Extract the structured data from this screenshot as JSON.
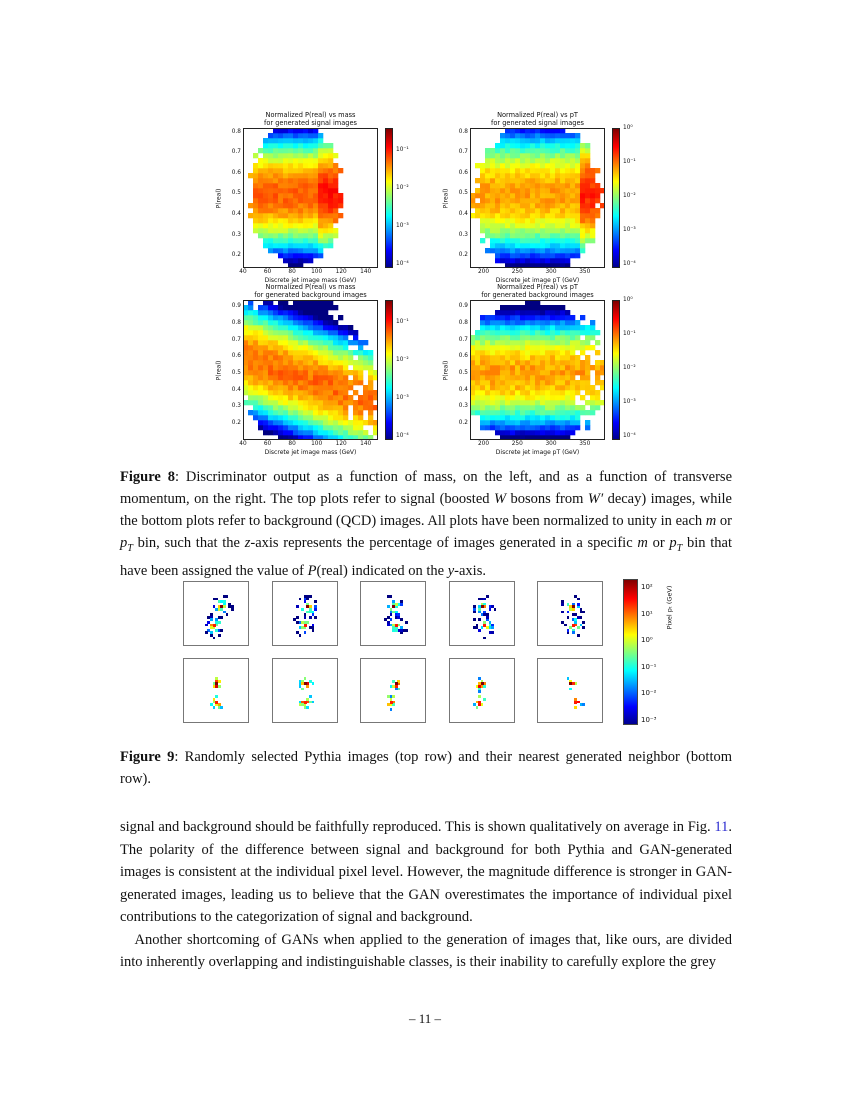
{
  "figure8": {
    "plots": [
      {
        "title": "Normalized P(real) vs mass\nfor generated signal images",
        "xlabel": "Discrete jet image mass (GeV)",
        "ylabel": "P(real)",
        "xticks": [
          "40",
          "60",
          "80",
          "100",
          "120",
          "140"
        ],
        "xlim": [
          40,
          150
        ],
        "yticks": [
          "0.2",
          "0.3",
          "0.4",
          "0.5",
          "0.6",
          "0.7",
          "0.8"
        ],
        "ylim": [
          0.14,
          0.82
        ],
        "cbar_ticks": [
          "10⁻¹",
          "10⁻²",
          "10⁻³",
          "10⁻⁴"
        ]
      },
      {
        "title": "Normalized P(real) vs pT\nfor generated signal images",
        "xlabel": "Discrete jet image pT (GeV)",
        "ylabel": "P(real)",
        "xticks": [
          "200",
          "250",
          "300",
          "350"
        ],
        "xlim": [
          180,
          380
        ],
        "yticks": [
          "0.2",
          "0.3",
          "0.4",
          "0.5",
          "0.6",
          "0.7",
          "0.8"
        ],
        "ylim": [
          0.14,
          0.82
        ],
        "cbar_ticks": [
          "10⁰",
          "10⁻¹",
          "10⁻²",
          "10⁻³",
          "10⁻⁴"
        ]
      },
      {
        "title": "Normalized P(real) vs mass\nfor generated background images",
        "xlabel": "Discrete jet image mass (GeV)",
        "ylabel": "P(real)",
        "xticks": [
          "40",
          "60",
          "80",
          "100",
          "120",
          "140"
        ],
        "xlim": [
          40,
          150
        ],
        "yticks": [
          "0.2",
          "0.3",
          "0.4",
          "0.5",
          "0.6",
          "0.7",
          "0.8",
          "0.9"
        ],
        "ylim": [
          0.1,
          0.94
        ],
        "cbar_ticks": [
          "10⁻¹",
          "10⁻²",
          "10⁻³",
          "10⁻⁴"
        ]
      },
      {
        "title": "Normalized P(real) vs pT\nfor generated background images",
        "xlabel": "Discrete jet image pT (GeV)",
        "ylabel": "P(real)",
        "xticks": [
          "200",
          "250",
          "300",
          "350"
        ],
        "xlim": [
          180,
          380
        ],
        "yticks": [
          "0.2",
          "0.3",
          "0.4",
          "0.5",
          "0.6",
          "0.7",
          "0.8",
          "0.9"
        ],
        "ylim": [
          0.1,
          0.94
        ],
        "cbar_ticks": [
          "10⁰",
          "10⁻¹",
          "10⁻²",
          "10⁻³",
          "10⁻⁴"
        ]
      }
    ],
    "caption_label": "Figure 8",
    "caption": [
      {
        "t": ": Discriminator output as a function of mass, on the left, and as a function of transverse momentum, on the right. The top plots refer to signal (boosted "
      },
      {
        "t": "W",
        "i": true
      },
      {
        "t": " bosons from "
      },
      {
        "t": "W′",
        "i": true
      },
      {
        "t": " decay) images, while the bottom plots refer to background (QCD) images. All plots have been normalized to unity in each "
      },
      {
        "t": "m",
        "i": true
      },
      {
        "t": " or "
      },
      {
        "t": "p",
        "i": true
      },
      {
        "t": "T",
        "i": true,
        "sub": true
      },
      {
        "t": " bin, such that the "
      },
      {
        "t": "z",
        "i": true
      },
      {
        "t": "-axis represents the percentage of images generated in a specific "
      },
      {
        "t": "m",
        "i": true
      },
      {
        "t": " or "
      },
      {
        "t": "p",
        "i": true
      },
      {
        "t": "T",
        "i": true,
        "sub": true
      },
      {
        "t": " bin that have been assigned the value of "
      },
      {
        "t": "P",
        "i": true
      },
      {
        "t": "(real) indicated on the "
      },
      {
        "t": "y",
        "i": true
      },
      {
        "t": "-axis."
      }
    ]
  },
  "figure9": {
    "cbar_label": "Pixel pₜ (GeV)",
    "cbar_ticks": [
      "10²",
      "10¹",
      "10⁰",
      "10⁻¹",
      "10⁻²",
      "10⁻³"
    ],
    "caption_label": "Figure 9",
    "caption": [
      {
        "t": ": Randomly selected Pythia images (top row) and their nearest generated neighbor (bottom row)."
      }
    ]
  },
  "body": {
    "para1": [
      {
        "t": "signal and background should be faithfully reproduced. This is shown qualitatively on average in Fig. "
      },
      {
        "t": "11",
        "link": true
      },
      {
        "t": ". The polarity of the difference between signal and background for both Pythia and GAN-generated images is consistent at the individual pixel level. However, the magnitude difference is stronger in GAN-generated images, leading us to believe that the GAN overestimates the importance of individual pixel contributions to the categorization of signal and background."
      }
    ],
    "para2": [
      {
        "t": " Another shortcoming of GANs when applied to the generation of images that, like ours, are divided into inherently overlapping and indistinguishable classes, is their inability to carefully explore the grey"
      }
    ]
  },
  "page_number": "– 11 –"
}
